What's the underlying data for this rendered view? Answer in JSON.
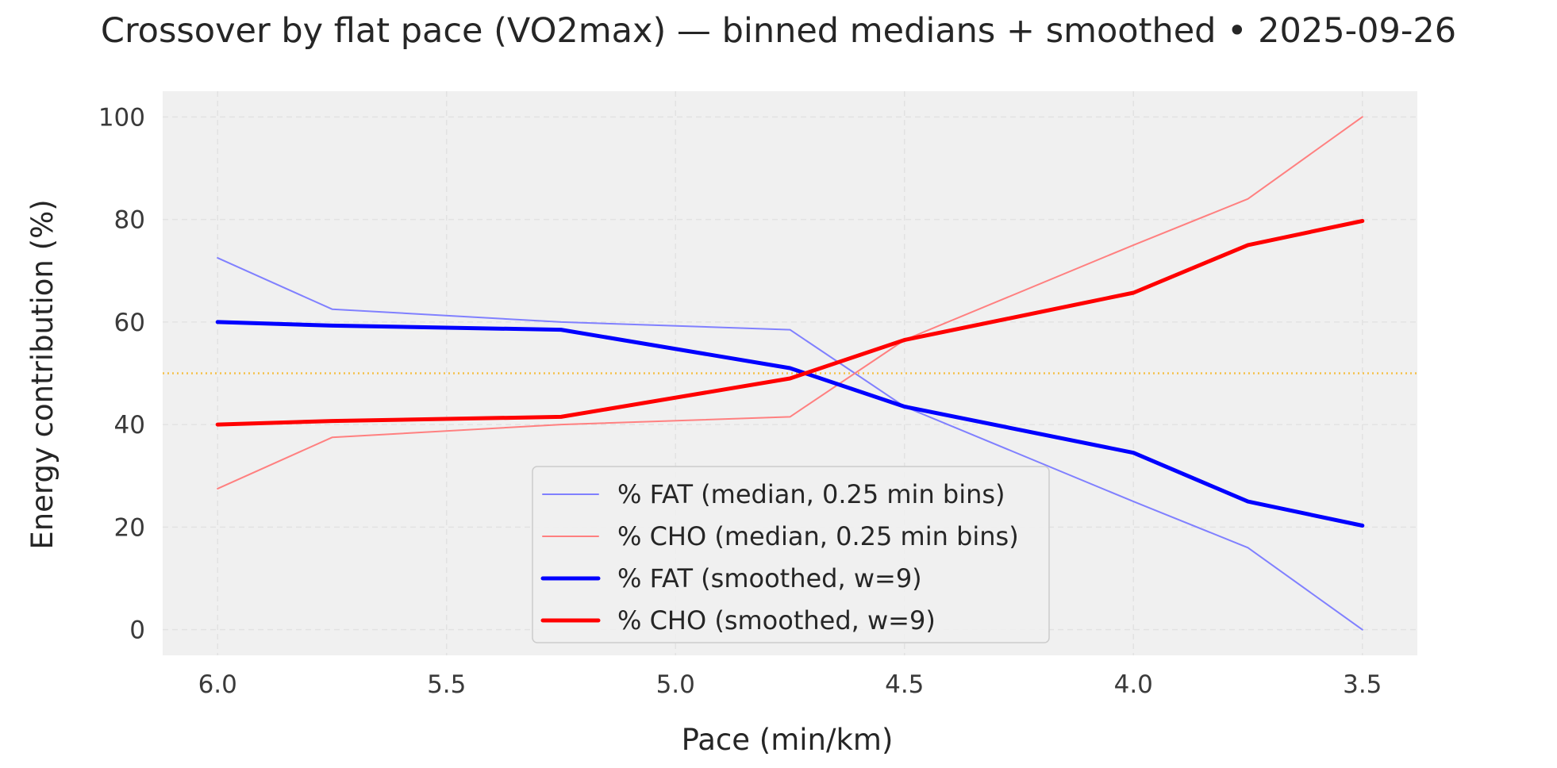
{
  "chart_data": {
    "type": "line",
    "title": "Crossover by flat pace (VO2max) — binned medians + smoothed • 2025-09-26",
    "xlabel": "Pace (min/km)",
    "ylabel": "Energy contribution (%)",
    "x_inverted": true,
    "xlim": [
      6.12,
      3.38
    ],
    "ylim": [
      -5,
      105
    ],
    "xticks": [
      "6.0",
      "5.5",
      "5.0",
      "4.5",
      "4.0",
      "3.5"
    ],
    "yticks": [
      "0",
      "20",
      "40",
      "60",
      "80",
      "100"
    ],
    "grid": true,
    "legend_position": "lower center",
    "reference_line": {
      "y": 50,
      "color": "#f5c048",
      "style": "dotted"
    },
    "x": [
      6.0,
      5.75,
      5.25,
      4.75,
      4.5,
      4.0,
      3.75,
      3.5
    ],
    "series": [
      {
        "name": "% FAT (median, 0.25 min bins)",
        "color": "#8080ff",
        "width": "thin",
        "values": [
          72.5,
          62.5,
          60.0,
          58.5,
          43.5,
          25.0,
          16.0,
          0.0
        ]
      },
      {
        "name": "% CHO (median, 0.25 min bins)",
        "color": "#ff8080",
        "width": "thin",
        "values": [
          27.5,
          37.5,
          40.0,
          41.5,
          56.5,
          75.0,
          84.0,
          100.0
        ]
      },
      {
        "name": "% FAT (smoothed, w=9)",
        "color": "#0000ff",
        "width": "thick",
        "values": [
          60.0,
          59.3,
          58.5,
          51.0,
          43.5,
          34.5,
          25.0,
          20.3
        ]
      },
      {
        "name": "% CHO (smoothed, w=9)",
        "color": "#ff0000",
        "width": "thick",
        "values": [
          40.0,
          40.7,
          41.5,
          49.0,
          56.5,
          65.7,
          75.0,
          79.7
        ]
      }
    ]
  }
}
